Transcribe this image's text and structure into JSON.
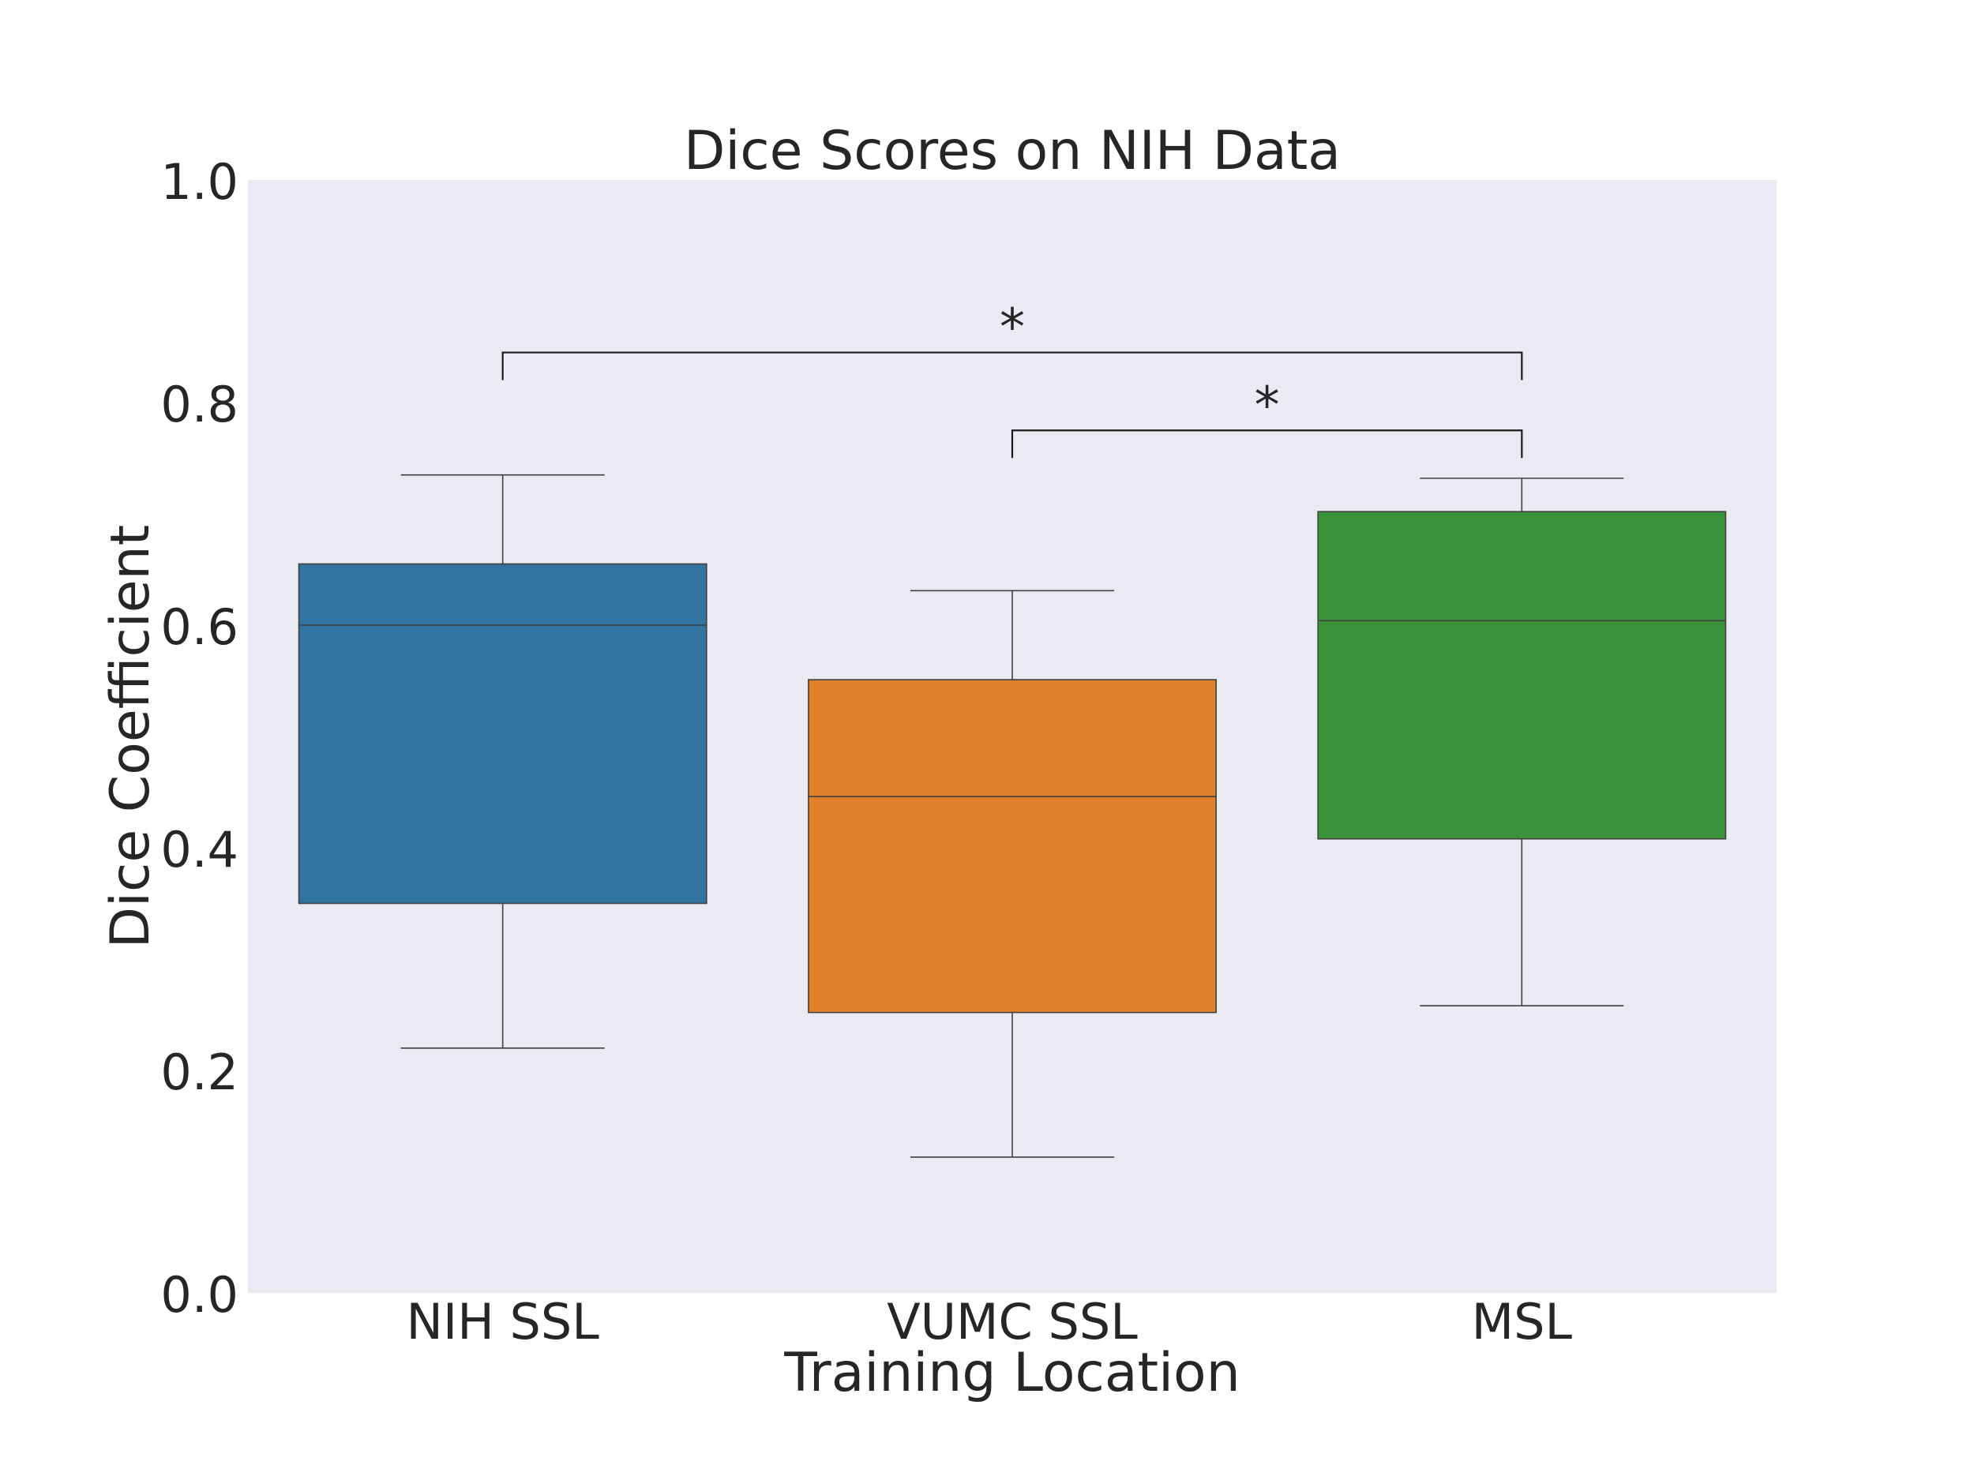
{
  "chart_data": {
    "type": "box",
    "title": "Dice Scores on NIH Data",
    "xlabel": "Training Location",
    "ylabel": "Dice Coefficient",
    "ylim": [
      0.0,
      1.0
    ],
    "yticks": [
      "0.0",
      "0.2",
      "0.4",
      "0.6",
      "0.8",
      "1.0"
    ],
    "grid": false,
    "categories": [
      "NIH SSL",
      "VUMC SSL",
      "MSL"
    ],
    "boxes": [
      {
        "label": "NIH SSL",
        "whisker_low": 0.22,
        "q1": 0.35,
        "median": 0.6,
        "q3": 0.655,
        "whisker_high": 0.735,
        "color": "#3274a1"
      },
      {
        "label": "VUMC SSL",
        "whisker_low": 0.122,
        "q1": 0.252,
        "median": 0.446,
        "q3": 0.551,
        "whisker_high": 0.631,
        "color": "#e1812c"
      },
      {
        "label": "MSL",
        "whisker_low": 0.258,
        "q1": 0.408,
        "median": 0.604,
        "q3": 0.702,
        "whisker_high": 0.732,
        "color": "#3a923a"
      }
    ],
    "annotations": [
      {
        "from": "NIH SSL",
        "to": "MSL",
        "y": 0.845,
        "text": "*"
      },
      {
        "from": "VUMC SSL",
        "to": "MSL",
        "y": 0.775,
        "text": "*"
      }
    ]
  }
}
